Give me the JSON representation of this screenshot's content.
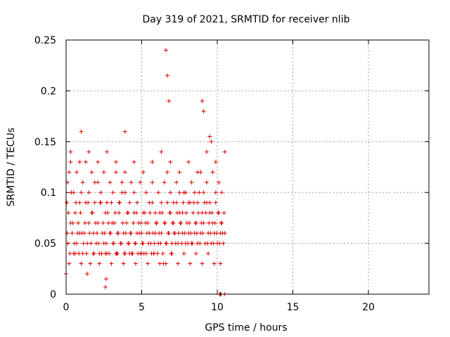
{
  "chart_data": {
    "type": "scatter",
    "title": "Day 319 of 2021, SRMTID for receiver nlib",
    "xlabel": "GPS time / hours",
    "ylabel": "SRMTID / TECUs",
    "xlim": [
      0,
      24
    ],
    "ylim": [
      0,
      0.25
    ],
    "xticks": [
      "0",
      "5",
      "10",
      "15",
      "20"
    ],
    "yticks": [
      "0",
      "0.05",
      "0.1",
      "0.15",
      "0.2",
      "0.25"
    ],
    "grid": true,
    "marker": "+",
    "color": "#e00000",
    "series": [
      {
        "x": [
          0.05,
          0.12,
          0.2,
          0.3,
          0.4,
          0.5,
          0.6,
          0.7,
          0.8,
          0.9,
          1.0,
          1.1,
          1.2,
          1.3,
          1.4,
          1.5,
          1.6,
          1.7,
          1.8,
          1.9,
          2.0,
          2.1,
          2.2,
          2.3,
          2.4,
          2.5,
          2.6,
          2.7,
          2.8,
          2.9,
          3.0,
          3.1,
          3.2,
          3.3,
          3.4,
          3.5,
          3.6,
          3.7,
          3.8,
          3.9,
          4.0,
          4.1,
          4.2,
          4.3,
          4.4,
          4.5,
          4.6,
          4.7,
          4.8,
          4.9,
          5.0,
          5.1,
          5.2,
          5.3,
          5.4,
          5.5,
          5.6,
          5.7,
          5.8,
          5.9,
          6.0,
          6.1,
          6.2,
          6.3,
          6.4,
          6.5,
          6.6,
          6.7,
          6.8,
          6.9,
          7.0,
          7.1,
          7.2,
          7.3,
          7.4,
          7.5,
          7.6,
          7.7,
          7.8,
          7.9,
          8.0,
          8.1,
          8.2,
          8.3,
          8.4,
          8.5,
          8.6,
          8.7,
          8.8,
          8.9,
          9.0,
          9.1,
          9.2,
          9.3,
          9.4,
          9.5,
          9.6,
          9.7,
          9.8,
          9.9,
          10.0,
          10.1,
          10.2,
          10.3,
          10.4,
          10.5,
          0.08,
          0.15,
          0.25,
          0.35,
          0.45,
          0.55,
          0.65,
          0.75,
          0.85,
          0.95,
          1.05,
          1.15,
          1.25,
          1.35,
          1.45,
          1.55,
          1.65,
          1.75,
          1.85,
          1.95,
          2.05,
          2.15,
          2.25,
          2.35,
          2.45,
          2.55,
          2.65,
          2.75,
          2.85,
          2.95,
          3.05,
          3.15,
          3.25,
          3.35,
          3.45,
          3.55,
          3.65,
          3.75,
          3.85,
          3.95,
          4.05,
          4.15,
          4.25,
          4.35,
          4.45,
          4.55,
          4.65,
          4.75,
          4.85,
          4.95,
          5.05,
          5.15,
          5.25,
          5.35,
          5.45,
          5.55,
          5.65,
          5.75,
          5.85,
          5.95,
          6.05,
          6.15,
          6.25,
          6.35,
          6.45,
          6.55,
          6.65,
          6.75,
          6.85,
          6.95,
          7.05,
          7.15,
          7.25,
          7.35,
          7.45,
          7.55,
          7.65,
          7.75,
          7.85,
          7.95,
          8.05,
          8.15,
          8.25,
          8.35,
          8.45,
          8.55,
          8.65,
          8.75,
          8.85,
          8.95,
          9.05,
          9.15,
          9.25,
          9.35,
          9.45,
          9.55,
          9.65,
          9.75,
          9.85,
          9.95,
          10.05,
          10.15,
          10.25,
          10.35,
          10.45,
          0.1,
          0.3,
          0.5,
          0.7,
          0.9,
          1.1,
          1.3,
          1.5,
          1.7,
          1.9,
          2.1,
          2.3,
          2.5,
          2.7,
          2.9,
          3.1,
          3.3,
          3.5,
          3.7,
          3.9,
          4.1,
          4.3,
          4.5,
          4.7,
          4.9,
          5.1,
          5.3,
          5.5,
          5.7,
          5.9,
          6.1,
          6.3,
          6.5,
          6.7,
          6.9,
          7.1,
          7.3,
          7.5,
          7.7,
          7.9,
          8.1,
          8.3,
          8.5,
          8.7,
          8.9,
          9.1,
          9.3,
          9.5,
          9.7,
          9.9,
          10.1,
          10.3,
          0.2,
          0.6,
          1.0,
          1.4,
          1.8,
          2.2,
          2.6,
          3.0,
          3.4,
          3.8,
          4.2,
          4.6,
          5.0,
          5.4,
          5.8,
          6.2,
          6.6,
          7.0,
          7.4,
          7.8,
          8.2,
          8.6,
          9.0,
          9.4,
          9.8,
          10.2,
          0.3,
          0.9,
          1.5,
          2.1,
          2.7,
          3.3,
          3.9,
          4.5,
          5.1,
          5.7,
          6.3,
          6.9,
          7.5,
          8.1,
          8.7,
          9.3,
          9.9,
          10.5,
          0.0,
          1.0,
          2.6,
          3.9,
          6.6,
          6.7,
          6.8,
          9.0,
          9.1,
          9.5,
          9.6,
          2.65,
          10.15,
          10.2,
          10.25,
          10.5
        ],
        "y": [
          0.09,
          0.05,
          0.12,
          0.07,
          0.06,
          0.04,
          0.08,
          0.05,
          0.07,
          0.06,
          0.1,
          0.04,
          0.06,
          0.09,
          0.05,
          0.07,
          0.03,
          0.08,
          0.06,
          0.11,
          0.05,
          0.07,
          0.04,
          0.09,
          0.06,
          0.05,
          0.08,
          0.04,
          0.07,
          0.06,
          0.09,
          0.05,
          0.07,
          0.04,
          0.06,
          0.08,
          0.05,
          0.1,
          0.06,
          0.04,
          0.07,
          0.05,
          0.09,
          0.06,
          0.04,
          0.08,
          0.05,
          0.06,
          0.07,
          0.04,
          0.06,
          0.05,
          0.08,
          0.04,
          0.07,
          0.06,
          0.05,
          0.09,
          0.04,
          0.06,
          0.07,
          0.05,
          0.08,
          0.06,
          0.04,
          0.07,
          0.05,
          0.09,
          0.06,
          0.08,
          0.05,
          0.07,
          0.06,
          0.09,
          0.05,
          0.08,
          0.07,
          0.06,
          0.1,
          0.05,
          0.07,
          0.06,
          0.09,
          0.05,
          0.08,
          0.06,
          0.07,
          0.05,
          0.1,
          0.06,
          0.08,
          0.07,
          0.05,
          0.09,
          0.06,
          0.08,
          0.05,
          0.07,
          0.06,
          0.09,
          0.05,
          0.08,
          0.06,
          0.07,
          0.05,
          0.06,
          0.06,
          0.08,
          0.04,
          0.1,
          0.07,
          0.05,
          0.09,
          0.06,
          0.04,
          0.08,
          0.06,
          0.05,
          0.07,
          0.04,
          0.09,
          0.06,
          0.05,
          0.08,
          0.04,
          0.07,
          0.06,
          0.05,
          0.09,
          0.04,
          0.07,
          0.06,
          0.05,
          0.08,
          0.04,
          0.06,
          0.07,
          0.05,
          0.08,
          0.04,
          0.06,
          0.09,
          0.05,
          0.07,
          0.04,
          0.06,
          0.08,
          0.05,
          0.06,
          0.04,
          0.07,
          0.05,
          0.08,
          0.04,
          0.06,
          0.07,
          0.05,
          0.04,
          0.07,
          0.06,
          0.05,
          0.08,
          0.04,
          0.06,
          0.05,
          0.07,
          0.04,
          0.06,
          0.05,
          0.08,
          0.03,
          0.07,
          0.05,
          0.06,
          0.08,
          0.04,
          0.07,
          0.06,
          0.05,
          0.08,
          0.06,
          0.07,
          0.05,
          0.09,
          0.06,
          0.08,
          0.05,
          0.07,
          0.06,
          0.05,
          0.09,
          0.07,
          0.06,
          0.08,
          0.05,
          0.07,
          0.06,
          0.09,
          0.08,
          0.05,
          0.07,
          0.06,
          0.08,
          0.05,
          0.07,
          0.06,
          0.08,
          0.05,
          0.07,
          0.06,
          0.08,
          0.11,
          0.13,
          0.1,
          0.12,
          0.09,
          0.11,
          0.13,
          0.1,
          0.12,
          0.09,
          0.11,
          0.1,
          0.12,
          0.09,
          0.11,
          0.1,
          0.12,
          0.09,
          0.11,
          0.1,
          0.08,
          0.11,
          0.1,
          0.09,
          0.11,
          0.08,
          0.1,
          0.09,
          0.11,
          0.08,
          0.1,
          0.09,
          0.11,
          0.12,
          0.1,
          0.09,
          0.11,
          0.1,
          0.08,
          0.1,
          0.09,
          0.11,
          0.1,
          0.09,
          0.12,
          0.1,
          0.11,
          0.09,
          0.12,
          0.1,
          0.11,
          0.1,
          0.03,
          0.04,
          0.03,
          0.02,
          0.04,
          0.03,
          0.04,
          0.03,
          0.04,
          0.03,
          0.04,
          0.03,
          0.04,
          0.03,
          0.04,
          0.03,
          0.03,
          0.04,
          0.03,
          0.04,
          0.03,
          0.04,
          0.03,
          0.04,
          0.03,
          0.03,
          0.14,
          0.13,
          0.14,
          0.13,
          0.14,
          0.13,
          0.12,
          0.13,
          0.12,
          0.13,
          0.14,
          0.13,
          0.12,
          0.13,
          0.12,
          0.14,
          0.13,
          0.14,
          0.02,
          0.16,
          0.007,
          0.16,
          0.24,
          0.215,
          0.19,
          0.19,
          0.18,
          0.155,
          0.15,
          0.015,
          0.0,
          0.0,
          0.0,
          0.0
        ]
      }
    ]
  }
}
